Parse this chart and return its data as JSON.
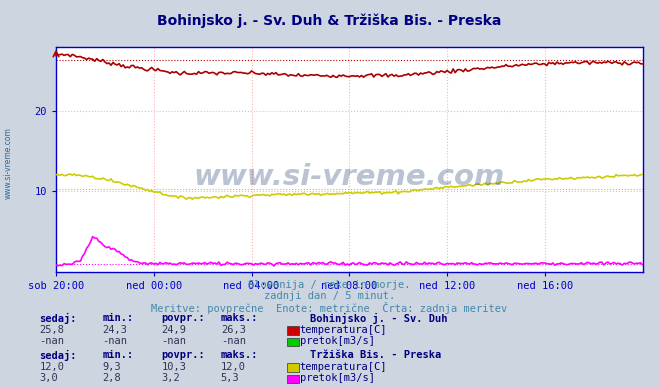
{
  "title": "Bohinjsko j. - Sv. Duh & Tržiška Bis. - Preska",
  "title_color": "#000080",
  "bg_color": "#ccd5e0",
  "plot_bg_color": "#ffffff",
  "grid_color": "#ffb0b0",
  "ylim": [
    0,
    28
  ],
  "yticks": [
    10,
    20
  ],
  "xtick_labels": [
    "sob 20:00",
    "ned 00:00",
    "ned 04:00",
    "ned 08:00",
    "ned 12:00",
    "ned 16:00"
  ],
  "n_points": 289,
  "temp1_color": "#aa0000",
  "temp1_avg": 26.3,
  "temp2_color": "#cccc00",
  "temp2_avg": 10.3,
  "flow2_color": "#ff00ff",
  "flow2_avg": 1.0,
  "subtitle1": "Slovenija / reke in morje.",
  "subtitle2": "zadnji dan / 5 minut.",
  "subtitle3": "Meritve: povprečne  Enote: metrične  Črta: zadnja meritev",
  "subtitle_color": "#4488aa",
  "legend_title1": "Bohinjsko j. - Sv. Duh",
  "legend_title2": "Tržiška Bis. - Preska",
  "label_color": "#000080",
  "axis_color": "#0000cc",
  "sidebar_text": "www.si-vreme.com"
}
